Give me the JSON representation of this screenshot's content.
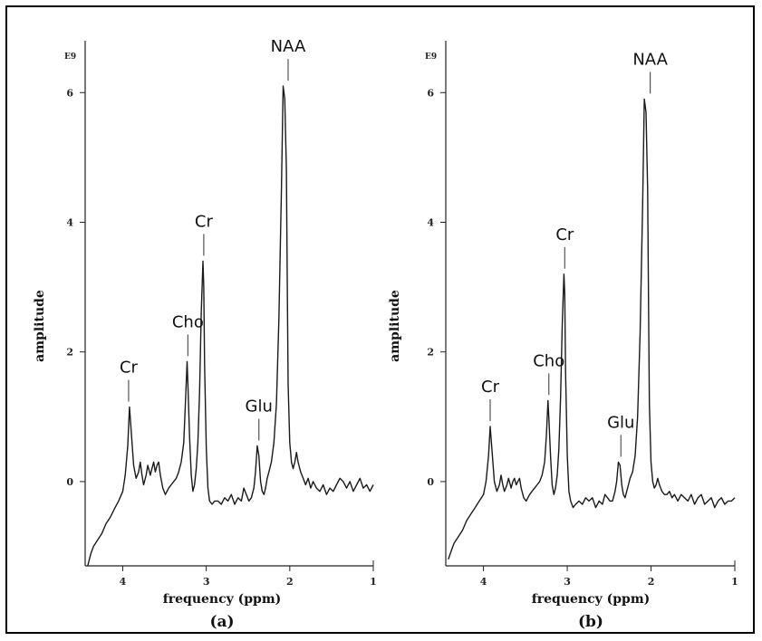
{
  "chart_data": [
    {
      "type": "line",
      "panel_label": "(a)",
      "xlabel": "frequency (ppm)",
      "ylabel": "amplitude",
      "scale_label": "E9",
      "x_axis_reversed": true,
      "xlim": [
        4.45,
        1.0
      ],
      "ylim": [
        -1.3,
        6.8
      ],
      "x_ticks": [
        4,
        3,
        2,
        1
      ],
      "y_ticks": [
        0,
        2,
        4,
        6
      ],
      "grid": false,
      "series": [
        {
          "x": [
            4.42,
            4.38,
            4.35,
            4.3,
            4.25,
            4.2,
            4.15,
            4.1,
            4.05,
            4.0,
            3.97,
            3.94,
            3.92,
            3.9,
            3.87,
            3.84,
            3.81,
            3.79,
            3.77,
            3.75,
            3.72,
            3.7,
            3.67,
            3.65,
            3.63,
            3.61,
            3.59,
            3.57,
            3.55,
            3.52,
            3.49,
            3.45,
            3.42,
            3.39,
            3.36,
            3.33,
            3.3,
            3.27,
            3.25,
            3.23,
            3.22,
            3.2,
            3.18,
            3.16,
            3.14,
            3.12,
            3.1,
            3.08,
            3.06,
            3.04,
            3.03,
            3.02,
            3.0,
            2.98,
            2.96,
            2.93,
            2.9,
            2.86,
            2.82,
            2.78,
            2.74,
            2.7,
            2.66,
            2.62,
            2.58,
            2.55,
            2.52,
            2.49,
            2.46,
            2.43,
            2.41,
            2.39,
            2.37,
            2.35,
            2.33,
            2.31,
            2.29,
            2.27,
            2.25,
            2.22,
            2.19,
            2.16,
            2.13,
            2.1,
            2.08,
            2.06,
            2.04,
            2.03,
            2.02,
            2.0,
            1.98,
            1.96,
            1.94,
            1.92,
            1.9,
            1.87,
            1.84,
            1.81,
            1.78,
            1.75,
            1.72,
            1.68,
            1.64,
            1.6,
            1.56,
            1.52,
            1.48,
            1.44,
            1.4,
            1.36,
            1.32,
            1.28,
            1.24,
            1.2,
            1.16,
            1.12,
            1.08,
            1.04,
            1.0
          ],
          "y": [
            -1.3,
            -1.1,
            -1.0,
            -0.9,
            -0.8,
            -0.65,
            -0.55,
            -0.42,
            -0.3,
            -0.15,
            0.1,
            0.55,
            1.15,
            0.8,
            0.25,
            0.05,
            0.15,
            0.3,
            0.1,
            -0.05,
            0.1,
            0.25,
            0.1,
            0.2,
            0.3,
            0.15,
            0.25,
            0.3,
            0.1,
            -0.1,
            -0.2,
            -0.1,
            -0.05,
            0.0,
            0.05,
            0.15,
            0.3,
            0.6,
            1.2,
            1.85,
            1.5,
            0.7,
            0.1,
            -0.15,
            -0.05,
            0.2,
            0.6,
            1.4,
            2.6,
            3.4,
            3.0,
            1.8,
            0.5,
            -0.1,
            -0.3,
            -0.35,
            -0.3,
            -0.3,
            -0.35,
            -0.25,
            -0.3,
            -0.2,
            -0.35,
            -0.25,
            -0.3,
            -0.1,
            -0.2,
            -0.3,
            -0.25,
            -0.1,
            0.15,
            0.55,
            0.4,
            0.0,
            -0.15,
            -0.2,
            -0.1,
            0.05,
            0.15,
            0.3,
            0.6,
            1.2,
            2.5,
            4.5,
            6.1,
            5.9,
            4.8,
            3.0,
            1.5,
            0.6,
            0.3,
            0.2,
            0.3,
            0.45,
            0.3,
            0.15,
            0.05,
            -0.05,
            0.05,
            -0.1,
            0.0,
            -0.1,
            -0.15,
            -0.05,
            -0.2,
            -0.1,
            -0.15,
            -0.05,
            0.05,
            0.0,
            -0.1,
            0.0,
            -0.15,
            -0.05,
            0.05,
            -0.1,
            -0.05,
            -0.15,
            -0.05
          ]
        }
      ],
      "annotations": [
        {
          "text": "Cr",
          "x": 3.93,
          "peak_y": 1.15
        },
        {
          "text": "Cho",
          "x": 3.22,
          "peak_y": 1.85
        },
        {
          "text": "Cr",
          "x": 3.03,
          "peak_y": 3.4
        },
        {
          "text": "Glu",
          "x": 2.37,
          "peak_y": 0.55
        },
        {
          "text": "NAA",
          "x": 2.02,
          "peak_y": 6.1
        }
      ]
    },
    {
      "type": "line",
      "panel_label": "(b)",
      "xlabel": "frequency (ppm)",
      "ylabel": "amplitude",
      "scale_label": "E9",
      "x_axis_reversed": true,
      "xlim": [
        4.45,
        1.0
      ],
      "ylim": [
        -1.3,
        6.8
      ],
      "x_ticks": [
        4,
        3,
        2,
        1
      ],
      "y_ticks": [
        0,
        2,
        4,
        6
      ],
      "grid": false,
      "series": [
        {
          "x": [
            4.42,
            4.38,
            4.35,
            4.3,
            4.25,
            4.2,
            4.15,
            4.1,
            4.05,
            4.0,
            3.97,
            3.94,
            3.92,
            3.9,
            3.87,
            3.84,
            3.81,
            3.79,
            3.77,
            3.75,
            3.72,
            3.7,
            3.67,
            3.65,
            3.63,
            3.61,
            3.59,
            3.57,
            3.55,
            3.52,
            3.49,
            3.45,
            3.42,
            3.39,
            3.36,
            3.33,
            3.3,
            3.27,
            3.25,
            3.23,
            3.22,
            3.2,
            3.18,
            3.16,
            3.14,
            3.12,
            3.1,
            3.08,
            3.06,
            3.04,
            3.03,
            3.02,
            3.0,
            2.98,
            2.96,
            2.93,
            2.9,
            2.86,
            2.82,
            2.78,
            2.74,
            2.7,
            2.66,
            2.62,
            2.58,
            2.55,
            2.52,
            2.49,
            2.46,
            2.43,
            2.41,
            2.39,
            2.37,
            2.35,
            2.33,
            2.31,
            2.29,
            2.27,
            2.25,
            2.22,
            2.19,
            2.16,
            2.13,
            2.1,
            2.08,
            2.06,
            2.04,
            2.03,
            2.02,
            2.0,
            1.98,
            1.96,
            1.94,
            1.92,
            1.9,
            1.87,
            1.84,
            1.81,
            1.78,
            1.75,
            1.72,
            1.68,
            1.64,
            1.6,
            1.56,
            1.52,
            1.48,
            1.44,
            1.4,
            1.36,
            1.32,
            1.28,
            1.24,
            1.2,
            1.16,
            1.12,
            1.08,
            1.04,
            1.0
          ],
          "y": [
            -1.2,
            -1.05,
            -0.95,
            -0.85,
            -0.75,
            -0.6,
            -0.5,
            -0.4,
            -0.3,
            -0.2,
            0.0,
            0.4,
            0.85,
            0.5,
            0.0,
            -0.15,
            -0.05,
            0.1,
            -0.05,
            -0.15,
            -0.05,
            0.05,
            -0.1,
            0.0,
            0.05,
            -0.05,
            0.0,
            0.05,
            -0.1,
            -0.25,
            -0.3,
            -0.2,
            -0.15,
            -0.1,
            -0.05,
            0.0,
            0.1,
            0.3,
            0.7,
            1.25,
            1.0,
            0.4,
            -0.05,
            -0.2,
            -0.1,
            0.1,
            0.5,
            1.3,
            2.4,
            3.2,
            2.9,
            1.7,
            0.4,
            -0.15,
            -0.3,
            -0.4,
            -0.35,
            -0.3,
            -0.35,
            -0.25,
            -0.3,
            -0.25,
            -0.4,
            -0.3,
            -0.35,
            -0.2,
            -0.25,
            -0.3,
            -0.3,
            -0.15,
            0.0,
            0.3,
            0.25,
            -0.05,
            -0.2,
            -0.25,
            -0.15,
            -0.05,
            0.05,
            0.15,
            0.4,
            1.0,
            2.3,
            4.3,
            5.9,
            5.7,
            4.5,
            2.7,
            1.2,
            0.3,
            0.0,
            -0.1,
            -0.05,
            0.05,
            -0.05,
            -0.15,
            -0.2,
            -0.2,
            -0.15,
            -0.25,
            -0.2,
            -0.3,
            -0.2,
            -0.25,
            -0.3,
            -0.2,
            -0.35,
            -0.25,
            -0.2,
            -0.35,
            -0.3,
            -0.25,
            -0.4,
            -0.3,
            -0.25,
            -0.35,
            -0.3,
            -0.3,
            -0.25
          ]
        }
      ],
      "annotations": [
        {
          "text": "Cr",
          "x": 3.92,
          "peak_y": 0.85
        },
        {
          "text": "Cho",
          "x": 3.22,
          "peak_y": 1.25
        },
        {
          "text": "Cr",
          "x": 3.03,
          "peak_y": 3.2
        },
        {
          "text": "Glu",
          "x": 2.36,
          "peak_y": 0.3
        },
        {
          "text": "NAA",
          "x": 2.01,
          "peak_y": 5.9
        }
      ]
    }
  ]
}
